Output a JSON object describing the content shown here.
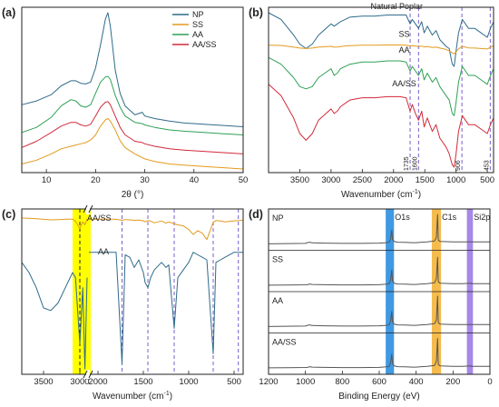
{
  "figure": {
    "panels": [
      {
        "tag": "(a)"
      },
      {
        "tag": "(b)"
      },
      {
        "tag": "(c)"
      },
      {
        "tag": "(d)"
      }
    ]
  },
  "chart_data": [
    {
      "panel": "(a)",
      "type": "line",
      "xlabel": "2θ (°)",
      "ylabel": "",
      "xlim": [
        5,
        50
      ],
      "x_ticks": [
        10,
        20,
        30,
        40,
        50
      ],
      "y_ticks_shown": false,
      "legend": "top-right",
      "x": [
        5,
        8,
        11,
        13,
        15,
        16,
        17,
        18,
        19,
        20,
        21,
        22,
        22.5,
        23,
        24,
        25,
        26,
        28,
        29.5,
        30,
        32,
        35,
        38,
        42,
        46,
        50
      ],
      "series": [
        {
          "name": "NP",
          "color": "#2e6b8a",
          "values": [
            14.0,
            14.6,
            15.6,
            17.0,
            17.8,
            17.8,
            17.4,
            17.3,
            17.6,
            19.8,
            23.5,
            27.6,
            28.6,
            26.5,
            19.5,
            15.8,
            13.8,
            12.4,
            12.8,
            12.2,
            11.8,
            11.4,
            11.1,
            10.9,
            10.7,
            10.5
          ]
        },
        {
          "name": "SS",
          "color": "#e39a1e",
          "values": [
            4.6,
            5.2,
            6.2,
            7.0,
            7.4,
            7.6,
            7.8,
            8.0,
            8.4,
            9.2,
            10.6,
            11.6,
            11.8,
            11.4,
            10.0,
            8.3,
            7.2,
            6.2,
            5.6,
            5.4,
            5.0,
            4.6,
            4.4,
            4.2,
            4.0,
            3.8
          ]
        },
        {
          "name": "AA",
          "color": "#2ea055",
          "values": [
            9.6,
            10.4,
            12.0,
            13.8,
            14.8,
            14.6,
            13.8,
            13.6,
            14.0,
            15.8,
            17.6,
            18.4,
            18.5,
            18.0,
            15.5,
            13.6,
            12.2,
            11.2,
            11.0,
            10.8,
            10.4,
            10.0,
            9.8,
            9.6,
            9.4,
            9.2
          ]
        },
        {
          "name": "AA/SS",
          "color": "#d12a3a",
          "values": [
            7.2,
            8.2,
            9.6,
            10.6,
            11.2,
            11.2,
            10.8,
            10.6,
            10.9,
            12.2,
            13.6,
            14.4,
            14.5,
            14.0,
            12.2,
            10.4,
            9.2,
            8.2,
            8.0,
            7.8,
            7.4,
            7.0,
            6.8,
            6.6,
            6.4,
            6.2
          ]
        }
      ]
    },
    {
      "panel": "(b)",
      "type": "line",
      "xlabel": "Wavenumber (cm-1)",
      "ylabel": "",
      "xlim": [
        4000,
        400
      ],
      "x_ticks": [
        3500,
        3000,
        2500,
        2000,
        1500,
        1000,
        500
      ],
      "y_ticks_shown": false,
      "x": [
        4000,
        3800,
        3600,
        3500,
        3400,
        3300,
        3200,
        3000,
        2950,
        2900,
        2850,
        2700,
        2500,
        2300,
        2100,
        2000,
        1900,
        1800,
        1735,
        1700,
        1650,
        1600,
        1550,
        1510,
        1460,
        1420,
        1380,
        1320,
        1260,
        1160,
        1110,
        1060,
        1030,
        1000,
        960,
        900,
        850,
        800,
        700,
        600,
        500,
        450,
        400
      ],
      "series": [
        {
          "name": "Natural Poplar",
          "color": "#2e6b8a",
          "values": [
            89,
            86,
            79,
            75,
            73,
            75,
            79,
            84,
            83,
            84,
            85,
            87,
            87.5,
            87.5,
            88,
            88,
            88,
            88,
            84,
            86,
            84,
            82,
            85,
            80,
            83,
            81,
            79,
            81,
            77,
            74,
            73,
            66,
            65,
            72,
            80,
            86,
            84,
            82,
            82,
            80,
            78,
            82,
            85
          ]
        },
        {
          "name": "SS",
          "color": "#e39a1e",
          "values": [
            74.5,
            74.4,
            73.6,
            73.2,
            73.0,
            73.2,
            73.6,
            74.0,
            73.6,
            73.7,
            73.9,
            74.3,
            74.5,
            74.5,
            74.6,
            74.6,
            74.6,
            74.5,
            74.2,
            74.3,
            74.1,
            73.9,
            74.1,
            73.7,
            73.9,
            73.7,
            73.5,
            73.6,
            73.2,
            72.6,
            72.0,
            71.0,
            70.7,
            71.5,
            72.8,
            74.0,
            73.6,
            73.3,
            73.2,
            73.0,
            72.8,
            73.6,
            74.2
          ]
        },
        {
          "name": "AA",
          "color": "#2ea055",
          "values": [
            69,
            66,
            60,
            56,
            55,
            56,
            60,
            64,
            61,
            62,
            64,
            66,
            67,
            67,
            67.5,
            67.5,
            67.5,
            67,
            63,
            65,
            63,
            61,
            64,
            59,
            62,
            60,
            58,
            60,
            56,
            52,
            50,
            44,
            43,
            49,
            58,
            65,
            63,
            61,
            61,
            59,
            57,
            61,
            64
          ]
        },
        {
          "name": "AA/SS",
          "color": "#d12a3a",
          "values": [
            57,
            52,
            42,
            35,
            32,
            35,
            41,
            46,
            44,
            45,
            47,
            50,
            51,
            51,
            51.5,
            51.5,
            51.5,
            51,
            45,
            48,
            44,
            41,
            45,
            38,
            42,
            39,
            36,
            39,
            33,
            29,
            26,
            21,
            20,
            26,
            36,
            43,
            41,
            39,
            39,
            37,
            35,
            39,
            42
          ]
        }
      ],
      "annotations": [
        "Natural Poplar",
        "SS",
        "AA",
        "AA/SS"
      ],
      "marker_lines": [
        {
          "x": 1735,
          "label": "1735",
          "color": "#7b5cc9"
        },
        {
          "x": 1600,
          "label": "1600",
          "color": "#7b5cc9"
        },
        {
          "x": 906,
          "label": "906",
          "color": "#7b5cc9"
        },
        {
          "x": 453,
          "label": "453",
          "color": "#7b5cc9"
        }
      ]
    },
    {
      "panel": "(c)",
      "type": "line",
      "xlabel": "Wavenumber (cm-1)",
      "ylabel": "",
      "xlim": [
        3800,
        400
      ],
      "x_ticks": [
        3500,
        3000,
        2000,
        1500,
        1000,
        500
      ],
      "axis_break": [
        2900,
        2100
      ],
      "y_ticks_shown": false,
      "x": [
        3800,
        3700,
        3600,
        3500,
        3400,
        3300,
        3200,
        3100,
        3060,
        3000,
        2960,
        2930,
        2900,
        2100,
        1950,
        1800,
        1735,
        1700,
        1650,
        1600,
        1550,
        1500,
        1480,
        1450,
        1420,
        1380,
        1300,
        1250,
        1220,
        1160,
        1120,
        1060,
        1000,
        950,
        900,
        850,
        800,
        730,
        700,
        650,
        600,
        500,
        400
      ],
      "series": [
        {
          "name": "AA/SS",
          "color": "#e39a1e",
          "values": [
            93.5,
            93.4,
            93.2,
            93.0,
            92.8,
            92.9,
            93.0,
            93.1,
            92.2,
            89.4,
            92.0,
            90.8,
            93.1,
            93.0,
            93.1,
            93.0,
            92.6,
            92.9,
            92.8,
            92.6,
            92.7,
            92.4,
            92.0,
            92.5,
            92.3,
            91.6,
            92.3,
            91.5,
            92.0,
            91.2,
            90.8,
            90.4,
            89.0,
            87.0,
            88.5,
            87.5,
            85.0,
            91.8,
            92.5,
            92.3,
            92.0,
            92.4,
            92.6
          ]
        },
        {
          "name": "AA",
          "color": "#2e6b8a",
          "values": [
            76,
            72,
            66,
            58,
            57,
            60,
            66,
            72,
            70,
            44,
            66,
            34,
            70,
            80,
            80,
            80,
            36,
            79,
            78,
            74,
            77,
            72,
            68,
            66,
            70,
            73,
            76,
            74,
            75,
            50,
            70,
            73,
            76,
            80,
            79,
            78,
            77,
            40,
            76,
            77,
            78,
            80,
            80
          ]
        }
      ],
      "annotations": [
        "AA/SS",
        "AA"
      ],
      "highlight_band": {
        "from": 3100,
        "to": 2900,
        "color": "#ffff00"
      },
      "marker_lines": [
        {
          "x": 3000,
          "color": "#222222"
        },
        {
          "x": 1735,
          "color": "#7b5cc9"
        },
        {
          "x": 1450,
          "color": "#7b5cc9"
        },
        {
          "x": 1160,
          "color": "#7b5cc9"
        },
        {
          "x": 730,
          "color": "#7b5cc9"
        },
        {
          "x": 453,
          "color": "#7b5cc9"
        }
      ]
    },
    {
      "panel": "(d)",
      "type": "line",
      "xlabel": "Binding Energy (eV)",
      "ylabel": "",
      "xlim": [
        1200,
        0
      ],
      "x_ticks": [
        1200,
        1000,
        800,
        600,
        400,
        200,
        0
      ],
      "y_ticks_shown": false,
      "x": [
        1200,
        1100,
        1000,
        990,
        975,
        965,
        900,
        800,
        700,
        600,
        560,
        545,
        538,
        532,
        528,
        520,
        500,
        460,
        420,
        400,
        380,
        340,
        300,
        290,
        284,
        280,
        270,
        200,
        150,
        102,
        100,
        50,
        0
      ],
      "subpanels": [
        {
          "name": "NP",
          "values": [
            26,
            26.5,
            27,
            28.5,
            29.5,
            28,
            27.5,
            27,
            27,
            27.5,
            28.5,
            30,
            38,
            55,
            36,
            31,
            29.5,
            29,
            28.5,
            28.5,
            29,
            30,
            32,
            40,
            88,
            34,
            31,
            30,
            30,
            30,
            30,
            30,
            30
          ]
        },
        {
          "name": "SS",
          "values": [
            26,
            26.3,
            26.7,
            27,
            28.5,
            27.5,
            27,
            26.5,
            26.5,
            27,
            28,
            29.5,
            38,
            58,
            36,
            30,
            28.5,
            28,
            27.5,
            27.5,
            28,
            29,
            31,
            40,
            85,
            33,
            30,
            29,
            29,
            30,
            29,
            29,
            29
          ]
        },
        {
          "name": "AA",
          "values": [
            26,
            26.5,
            27,
            28.5,
            29.5,
            28,
            27.5,
            27,
            27,
            27.5,
            28.5,
            30,
            38,
            58,
            36,
            31,
            29.5,
            29,
            28.5,
            28.5,
            29,
            30,
            32,
            40,
            90,
            34,
            31,
            30,
            30,
            30,
            30,
            30,
            30
          ]
        },
        {
          "name": "AA/SS",
          "values": [
            26,
            26.3,
            26.7,
            27,
            28.5,
            27.5,
            27,
            26.5,
            26.5,
            27,
            28,
            29.5,
            38,
            55,
            36,
            30,
            28.5,
            28,
            27.5,
            27.5,
            28,
            29,
            31,
            40,
            88,
            33,
            30,
            29,
            29,
            30,
            29,
            29,
            29
          ]
        }
      ],
      "line_color": "#555555",
      "highlight_bands": [
        {
          "label": "O1s",
          "from": 565,
          "to": 520,
          "color": "#2a8ee0"
        },
        {
          "label": "C1s",
          "from": 315,
          "to": 265,
          "color": "#f4b43a"
        },
        {
          "label": "Si2p",
          "from": 125,
          "to": 92,
          "color": "#9b7be6"
        }
      ]
    }
  ]
}
